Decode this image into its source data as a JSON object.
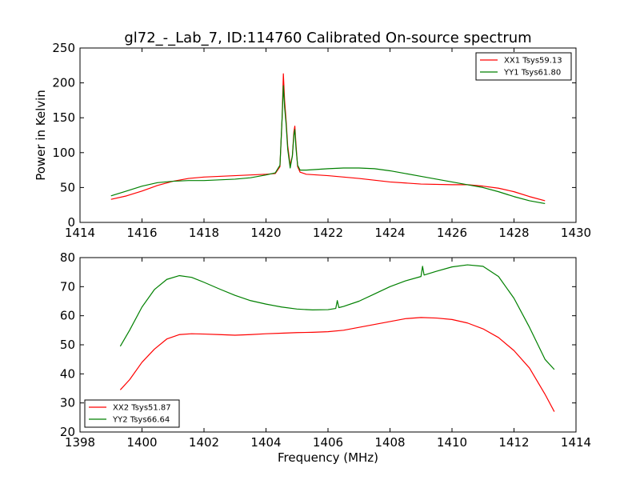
{
  "figure": {
    "title": "gl72_-_Lab_7, ID:114760 Calibrated On-source spectrum",
    "xlabel": "Frequency (MHz)",
    "ylabel": "Power in Kelvin"
  },
  "colors": {
    "red": "#ff0000",
    "green": "#008000"
  },
  "chart_data": [
    {
      "type": "line",
      "title": "gl72_-_Lab_7, ID:114760 Calibrated On-source spectrum",
      "xlabel": "",
      "ylabel": "Power in Kelvin",
      "xlim": [
        1414,
        1430
      ],
      "ylim": [
        0,
        250
      ],
      "xticks": [
        "1414",
        "1416",
        "1418",
        "1420",
        "1422",
        "1424",
        "1426",
        "1428",
        "1430"
      ],
      "yticks": [
        "0",
        "50",
        "100",
        "150",
        "200",
        "250"
      ],
      "legend_position": "top-right",
      "grid": false,
      "series": [
        {
          "name": "XX1 Tsys59.13",
          "color": "#ff0000",
          "points": [
            [
              1415.0,
              33
            ],
            [
              1415.5,
              38
            ],
            [
              1416.0,
              45
            ],
            [
              1416.5,
              53
            ],
            [
              1417.0,
              59
            ],
            [
              1417.5,
              63
            ],
            [
              1418.0,
              65
            ],
            [
              1418.5,
              66
            ],
            [
              1419.0,
              67
            ],
            [
              1419.5,
              68
            ],
            [
              1420.0,
              69
            ],
            [
              1420.3,
              70
            ],
            [
              1420.45,
              80
            ],
            [
              1420.52,
              150
            ],
            [
              1420.56,
              213
            ],
            [
              1420.6,
              175
            ],
            [
              1420.65,
              145
            ],
            [
              1420.7,
              110
            ],
            [
              1420.78,
              82
            ],
            [
              1420.85,
              95
            ],
            [
              1420.9,
              130
            ],
            [
              1420.93,
              138
            ],
            [
              1420.97,
              110
            ],
            [
              1421.02,
              80
            ],
            [
              1421.1,
              72
            ],
            [
              1421.3,
              69
            ],
            [
              1422.0,
              67
            ],
            [
              1423.0,
              63
            ],
            [
              1424.0,
              58
            ],
            [
              1425.0,
              55
            ],
            [
              1426.0,
              54
            ],
            [
              1426.5,
              54
            ],
            [
              1427.0,
              52
            ],
            [
              1427.5,
              49
            ],
            [
              1428.0,
              44
            ],
            [
              1428.5,
              37
            ],
            [
              1429.0,
              31
            ]
          ]
        },
        {
          "name": "YY1 Tsys61.80",
          "color": "#008000",
          "points": [
            [
              1415.0,
              38
            ],
            [
              1415.5,
              45
            ],
            [
              1416.0,
              52
            ],
            [
              1416.5,
              57
            ],
            [
              1417.0,
              59
            ],
            [
              1417.5,
              60
            ],
            [
              1418.0,
              60
            ],
            [
              1418.5,
              61
            ],
            [
              1419.0,
              62
            ],
            [
              1419.5,
              64
            ],
            [
              1420.0,
              68
            ],
            [
              1420.3,
              71
            ],
            [
              1420.45,
              82
            ],
            [
              1420.52,
              150
            ],
            [
              1420.56,
              196
            ],
            [
              1420.6,
              165
            ],
            [
              1420.65,
              140
            ],
            [
              1420.7,
              105
            ],
            [
              1420.78,
              78
            ],
            [
              1420.85,
              95
            ],
            [
              1420.9,
              125
            ],
            [
              1420.93,
              133
            ],
            [
              1420.97,
              105
            ],
            [
              1421.02,
              82
            ],
            [
              1421.1,
              75
            ],
            [
              1421.3,
              75
            ],
            [
              1422.0,
              77
            ],
            [
              1422.5,
              78
            ],
            [
              1423.0,
              78
            ],
            [
              1423.5,
              77
            ],
            [
              1424.0,
              74
            ],
            [
              1424.5,
              70
            ],
            [
              1425.0,
              66
            ],
            [
              1425.5,
              62
            ],
            [
              1426.0,
              58
            ],
            [
              1426.5,
              54
            ],
            [
              1427.0,
              50
            ],
            [
              1427.5,
              44
            ],
            [
              1428.0,
              37
            ],
            [
              1428.5,
              31
            ],
            [
              1429.0,
              27
            ]
          ]
        }
      ]
    },
    {
      "type": "line",
      "title": "",
      "xlabel": "Frequency (MHz)",
      "ylabel": "",
      "xlim": [
        1398,
        1414
      ],
      "ylim": [
        20,
        80
      ],
      "xticks": [
        "1398",
        "1400",
        "1402",
        "1404",
        "1406",
        "1408",
        "1410",
        "1412",
        "1414"
      ],
      "yticks": [
        "20",
        "30",
        "40",
        "50",
        "60",
        "70",
        "80"
      ],
      "legend_position": "bottom-left",
      "grid": false,
      "series": [
        {
          "name": "XX2 Tsys51.87",
          "color": "#ff0000",
          "points": [
            [
              1399.3,
              34.5
            ],
            [
              1399.6,
              38
            ],
            [
              1400.0,
              44
            ],
            [
              1400.4,
              48.5
            ],
            [
              1400.8,
              52
            ],
            [
              1401.2,
              53.5
            ],
            [
              1401.6,
              53.8
            ],
            [
              1402.0,
              53.7
            ],
            [
              1402.5,
              53.5
            ],
            [
              1403.0,
              53.3
            ],
            [
              1403.5,
              53.5
            ],
            [
              1404.0,
              53.8
            ],
            [
              1404.5,
              54
            ],
            [
              1405.0,
              54.2
            ],
            [
              1405.5,
              54.3
            ],
            [
              1406.0,
              54.5
            ],
            [
              1406.5,
              55
            ],
            [
              1407.0,
              56
            ],
            [
              1407.5,
              57
            ],
            [
              1408.0,
              58
            ],
            [
              1408.5,
              59
            ],
            [
              1409.0,
              59.4
            ],
            [
              1409.5,
              59.2
            ],
            [
              1410.0,
              58.7
            ],
            [
              1410.5,
              57.5
            ],
            [
              1411.0,
              55.5
            ],
            [
              1411.5,
              52.5
            ],
            [
              1412.0,
              48
            ],
            [
              1412.5,
              42
            ],
            [
              1413.0,
              33
            ],
            [
              1413.3,
              27
            ]
          ]
        },
        {
          "name": "YY2 Tsys66.64",
          "color": "#008000",
          "points": [
            [
              1399.3,
              49.5
            ],
            [
              1399.6,
              55
            ],
            [
              1400.0,
              63
            ],
            [
              1400.4,
              69
            ],
            [
              1400.8,
              72.5
            ],
            [
              1401.2,
              73.8
            ],
            [
              1401.6,
              73.2
            ],
            [
              1402.0,
              71.5
            ],
            [
              1402.5,
              69.2
            ],
            [
              1403.0,
              67
            ],
            [
              1403.5,
              65.2
            ],
            [
              1404.0,
              64
            ],
            [
              1404.5,
              63
            ],
            [
              1405.0,
              62.3
            ],
            [
              1405.5,
              62
            ],
            [
              1406.0,
              62.1
            ],
            [
              1406.25,
              62.5
            ],
            [
              1406.3,
              65.2
            ],
            [
              1406.35,
              62.8
            ],
            [
              1406.5,
              63.2
            ],
            [
              1407.0,
              65
            ],
            [
              1407.5,
              67.5
            ],
            [
              1408.0,
              70
            ],
            [
              1408.5,
              72
            ],
            [
              1409.0,
              73.5
            ],
            [
              1409.05,
              77
            ],
            [
              1409.1,
              74
            ],
            [
              1409.5,
              75.3
            ],
            [
              1410.0,
              76.8
            ],
            [
              1410.5,
              77.5
            ],
            [
              1411.0,
              77
            ],
            [
              1411.5,
              73.5
            ],
            [
              1412.0,
              66
            ],
            [
              1412.5,
              56
            ],
            [
              1413.0,
              45
            ],
            [
              1413.3,
              41.5
            ]
          ]
        }
      ]
    }
  ]
}
